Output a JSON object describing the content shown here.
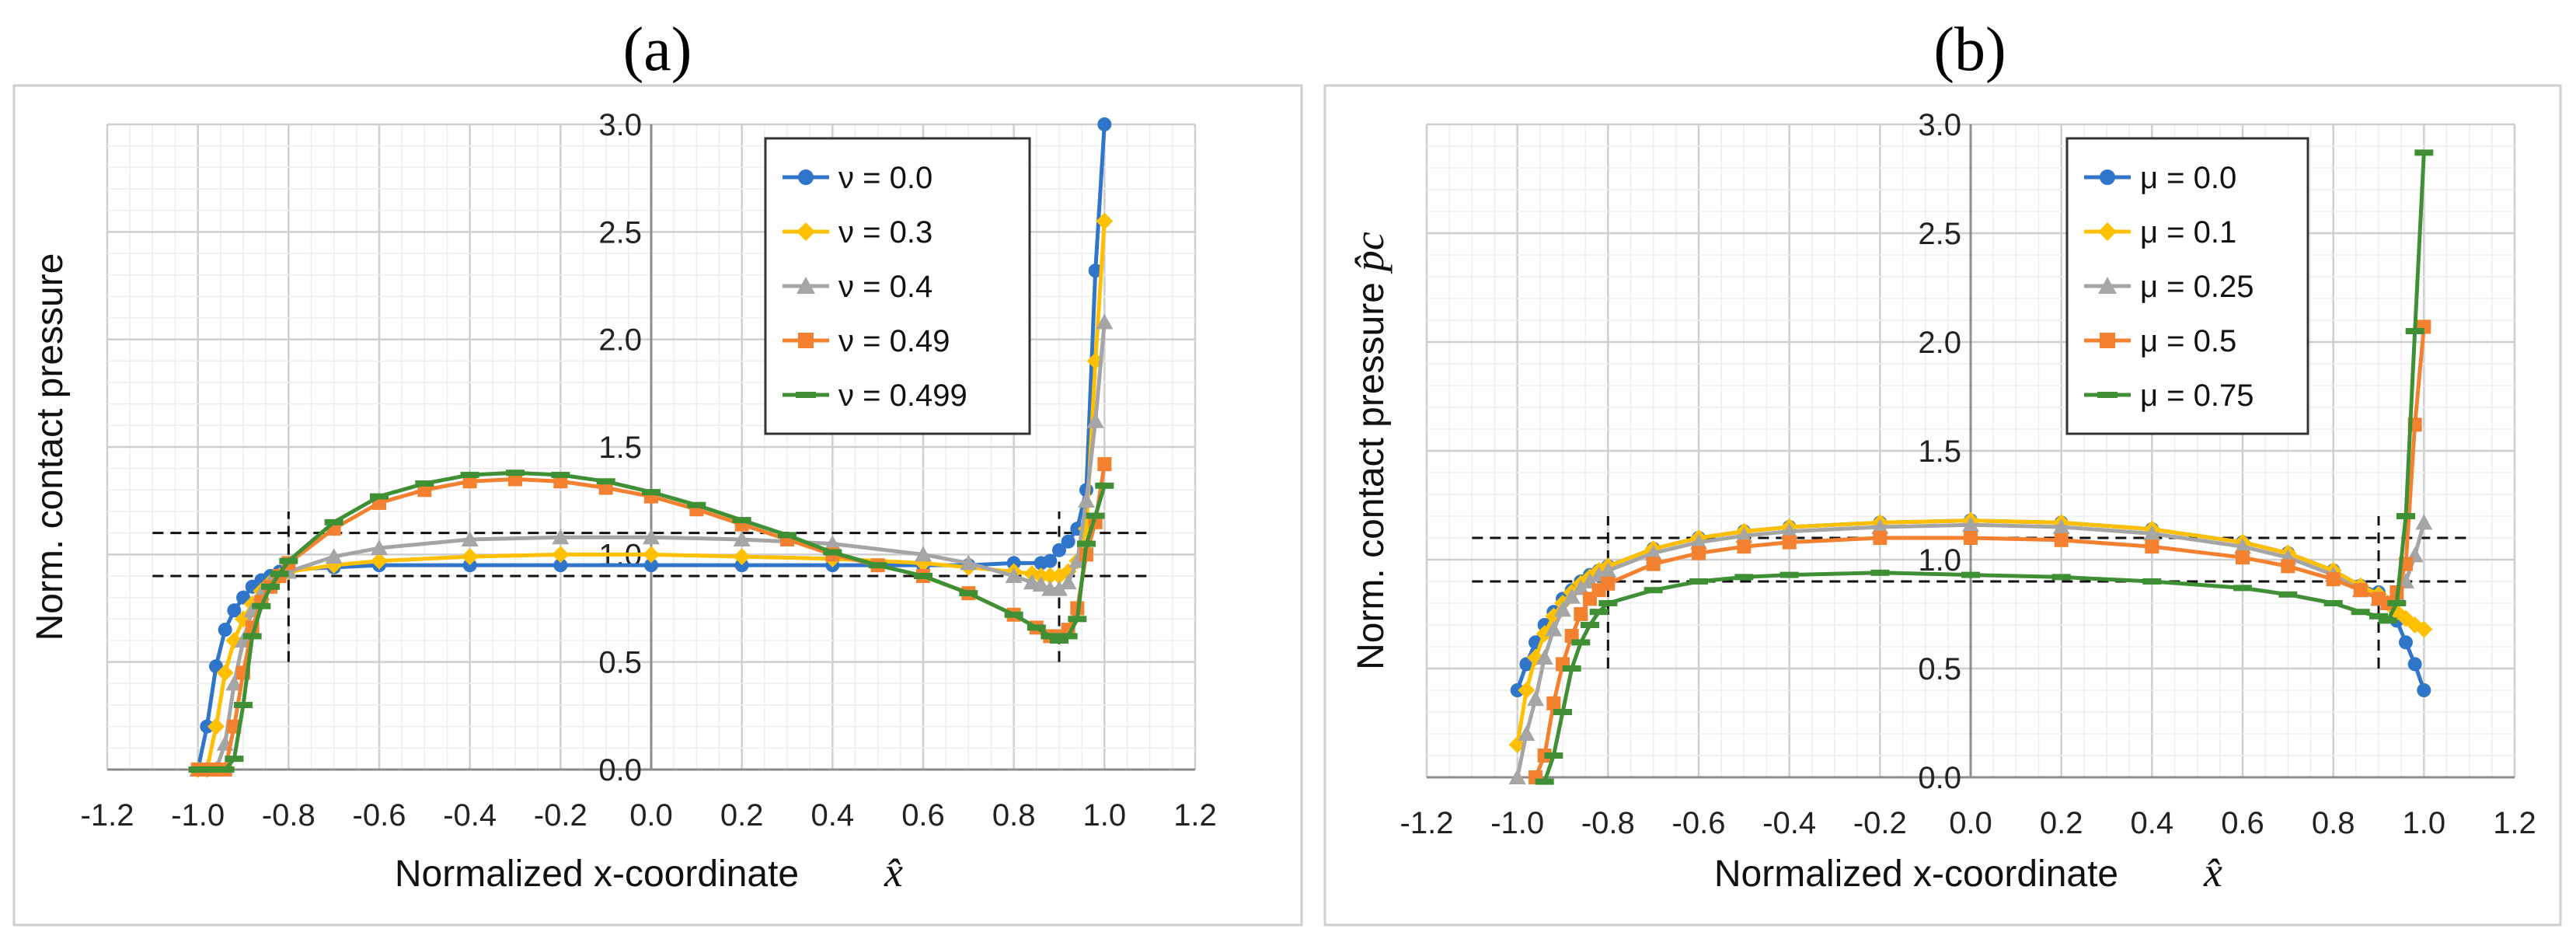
{
  "panels": [
    {
      "id": "a",
      "title": "(a)",
      "chart_data": {
        "type": "line",
        "xlabel": "Normalized x-coordinate",
        "xlabel_symbol": "x̂",
        "ylabel": "Norm. contact pressure",
        "ylabel_symbol": "",
        "xlim": [
          -1.2,
          1.2
        ],
        "ylim": [
          0.0,
          3.0
        ],
        "xticks": [
          "-1.2",
          "-1.0",
          "-0.8",
          "-0.6",
          "-0.4",
          "-0.2",
          "0.0",
          "0.2",
          "0.4",
          "0.6",
          "0.8",
          "1.0",
          "1.2"
        ],
        "yticks": [
          "0.0",
          "0.5",
          "1.0",
          "1.5",
          "2.0",
          "2.5",
          "3.0"
        ],
        "grid": true,
        "legend_position": "top-right",
        "reference_lines": {
          "horizontal": [
            0.9,
            1.1
          ],
          "vertical": [
            -0.8,
            0.9
          ]
        },
        "series": [
          {
            "name": "ν = 0.0",
            "color": "#2f75c9",
            "marker": "circle",
            "x": [
              -1.0,
              -0.98,
              -0.96,
              -0.94,
              -0.92,
              -0.9,
              -0.88,
              -0.86,
              -0.84,
              -0.82,
              -0.8,
              -0.7,
              -0.6,
              -0.4,
              -0.2,
              0.0,
              0.2,
              0.4,
              0.6,
              0.7,
              0.8,
              0.86,
              0.88,
              0.9,
              0.92,
              0.94,
              0.96,
              0.98,
              1.0
            ],
            "y": [
              0.0,
              0.2,
              0.48,
              0.65,
              0.74,
              0.8,
              0.85,
              0.88,
              0.9,
              0.92,
              0.93,
              0.94,
              0.95,
              0.95,
              0.95,
              0.95,
              0.95,
              0.95,
              0.95,
              0.95,
              0.96,
              0.96,
              0.97,
              1.02,
              1.06,
              1.12,
              1.3,
              2.32,
              3.0
            ]
          },
          {
            "name": "ν = 0.3",
            "color": "#ffc000",
            "marker": "diamond",
            "x": [
              -1.0,
              -0.98,
              -0.96,
              -0.94,
              -0.92,
              -0.9,
              -0.88,
              -0.86,
              -0.84,
              -0.82,
              -0.8,
              -0.7,
              -0.6,
              -0.4,
              -0.2,
              0.0,
              0.2,
              0.4,
              0.6,
              0.7,
              0.8,
              0.84,
              0.86,
              0.88,
              0.9,
              0.92,
              0.94,
              0.96,
              0.98,
              1.0
            ],
            "y": [
              0.0,
              0.0,
              0.2,
              0.45,
              0.6,
              0.7,
              0.77,
              0.83,
              0.87,
              0.9,
              0.92,
              0.95,
              0.97,
              0.99,
              1.0,
              1.0,
              0.99,
              0.98,
              0.96,
              0.94,
              0.92,
              0.91,
              0.9,
              0.9,
              0.9,
              0.92,
              0.97,
              1.12,
              1.9,
              2.55
            ]
          },
          {
            "name": "ν = 0.4",
            "color": "#a5a5a5",
            "marker": "triangle",
            "x": [
              -1.0,
              -0.98,
              -0.96,
              -0.94,
              -0.92,
              -0.9,
              -0.88,
              -0.86,
              -0.84,
              -0.8,
              -0.7,
              -0.6,
              -0.4,
              -0.2,
              0.0,
              0.2,
              0.4,
              0.6,
              0.7,
              0.8,
              0.84,
              0.86,
              0.88,
              0.9,
              0.92,
              0.94,
              0.96,
              0.98,
              1.0
            ],
            "y": [
              0.0,
              0.0,
              0.0,
              0.12,
              0.4,
              0.6,
              0.74,
              0.82,
              0.87,
              0.92,
              0.99,
              1.03,
              1.07,
              1.08,
              1.08,
              1.07,
              1.05,
              1.0,
              0.96,
              0.9,
              0.87,
              0.86,
              0.84,
              0.84,
              0.87,
              0.97,
              1.25,
              1.62,
              2.08
            ]
          },
          {
            "name": "ν = 0.49",
            "color": "#f4812f",
            "marker": "square",
            "x": [
              -1.0,
              -0.98,
              -0.96,
              -0.94,
              -0.92,
              -0.9,
              -0.88,
              -0.86,
              -0.84,
              -0.82,
              -0.8,
              -0.7,
              -0.6,
              -0.5,
              -0.4,
              -0.3,
              -0.2,
              -0.1,
              0.0,
              0.1,
              0.2,
              0.3,
              0.4,
              0.5,
              0.6,
              0.7,
              0.8,
              0.85,
              0.88,
              0.9,
              0.92,
              0.94,
              0.96,
              0.98,
              1.0
            ],
            "y": [
              0.0,
              0.0,
              0.0,
              0.0,
              0.2,
              0.45,
              0.66,
              0.78,
              0.85,
              0.9,
              0.96,
              1.12,
              1.24,
              1.3,
              1.34,
              1.35,
              1.34,
              1.31,
              1.27,
              1.21,
              1.14,
              1.07,
              1.0,
              0.95,
              0.9,
              0.82,
              0.72,
              0.66,
              0.62,
              0.62,
              0.65,
              0.75,
              1.0,
              1.15,
              1.42
            ]
          },
          {
            "name": "ν = 0.499",
            "color": "#3f8f35",
            "marker": "dash",
            "x": [
              -1.0,
              -0.98,
              -0.96,
              -0.94,
              -0.92,
              -0.9,
              -0.88,
              -0.86,
              -0.84,
              -0.82,
              -0.8,
              -0.7,
              -0.6,
              -0.5,
              -0.4,
              -0.3,
              -0.2,
              -0.1,
              0.0,
              0.1,
              0.2,
              0.3,
              0.4,
              0.5,
              0.6,
              0.7,
              0.8,
              0.85,
              0.88,
              0.9,
              0.92,
              0.94,
              0.96,
              0.98,
              1.0
            ],
            "y": [
              0.0,
              0.0,
              0.0,
              0.0,
              0.05,
              0.3,
              0.62,
              0.76,
              0.85,
              0.91,
              0.97,
              1.15,
              1.27,
              1.33,
              1.37,
              1.38,
              1.37,
              1.34,
              1.29,
              1.23,
              1.16,
              1.09,
              1.01,
              0.95,
              0.9,
              0.82,
              0.72,
              0.66,
              0.62,
              0.6,
              0.62,
              0.7,
              1.05,
              1.18,
              1.32
            ]
          }
        ]
      }
    },
    {
      "id": "b",
      "title": "(b)",
      "chart_data": {
        "type": "line",
        "xlabel": "Normalized x-coordinate",
        "xlabel_symbol": "x̂",
        "ylabel": "Norm. contact pressure",
        "ylabel_symbol": "p̂c",
        "xlim": [
          -1.2,
          1.2
        ],
        "ylim": [
          0.0,
          3.0
        ],
        "xticks": [
          "-1.2",
          "-1.0",
          "-0.8",
          "-0.6",
          "-0.4",
          "-0.2",
          "0.0",
          "0.2",
          "0.4",
          "0.6",
          "0.8",
          "1.0",
          "1.2"
        ],
        "yticks": [
          "0.0",
          "0.5",
          "1.0",
          "1.5",
          "2.0",
          "2.5",
          "3.0"
        ],
        "grid": true,
        "legend_position": "top-right",
        "reference_lines": {
          "horizontal": [
            0.9,
            1.1
          ],
          "vertical": [
            -0.8,
            0.9
          ]
        },
        "series": [
          {
            "name": "μ = 0.0",
            "color": "#2f75c9",
            "marker": "circle",
            "x": [
              -1.0,
              -0.98,
              -0.96,
              -0.94,
              -0.92,
              -0.9,
              -0.88,
              -0.86,
              -0.84,
              -0.82,
              -0.8,
              -0.7,
              -0.6,
              -0.5,
              -0.4,
              -0.2,
              0.0,
              0.2,
              0.4,
              0.6,
              0.7,
              0.8,
              0.86,
              0.9,
              0.92,
              0.94,
              0.96,
              0.98,
              1.0
            ],
            "y": [
              0.4,
              0.52,
              0.62,
              0.7,
              0.76,
              0.82,
              0.86,
              0.9,
              0.93,
              0.95,
              0.97,
              1.05,
              1.1,
              1.13,
              1.15,
              1.17,
              1.18,
              1.17,
              1.14,
              1.08,
              1.03,
              0.95,
              0.88,
              0.85,
              0.8,
              0.72,
              0.62,
              0.52,
              0.4
            ]
          },
          {
            "name": "μ = 0.1",
            "color": "#ffc000",
            "marker": "diamond",
            "x": [
              -1.0,
              -0.98,
              -0.96,
              -0.94,
              -0.92,
              -0.9,
              -0.88,
              -0.86,
              -0.84,
              -0.82,
              -0.8,
              -0.7,
              -0.6,
              -0.5,
              -0.4,
              -0.2,
              0.0,
              0.2,
              0.4,
              0.6,
              0.7,
              0.8,
              0.86,
              0.9,
              0.92,
              0.94,
              0.96,
              0.98,
              1.0
            ],
            "y": [
              0.15,
              0.4,
              0.55,
              0.66,
              0.74,
              0.8,
              0.85,
              0.89,
              0.92,
              0.95,
              0.97,
              1.05,
              1.1,
              1.13,
              1.15,
              1.17,
              1.18,
              1.17,
              1.14,
              1.08,
              1.03,
              0.95,
              0.88,
              0.84,
              0.8,
              0.76,
              0.73,
              0.7,
              0.68
            ]
          },
          {
            "name": "μ = 0.25",
            "color": "#a5a5a5",
            "marker": "triangle",
            "x": [
              -1.0,
              -0.98,
              -0.96,
              -0.94,
              -0.92,
              -0.9,
              -0.88,
              -0.86,
              -0.84,
              -0.82,
              -0.8,
              -0.7,
              -0.6,
              -0.5,
              -0.4,
              -0.2,
              0.0,
              0.2,
              0.4,
              0.6,
              0.7,
              0.8,
              0.86,
              0.9,
              0.92,
              0.94,
              0.96,
              0.98,
              1.0
            ],
            "y": [
              0.0,
              0.2,
              0.36,
              0.55,
              0.68,
              0.77,
              0.83,
              0.87,
              0.9,
              0.93,
              0.95,
              1.03,
              1.08,
              1.11,
              1.13,
              1.15,
              1.16,
              1.15,
              1.12,
              1.06,
              1.01,
              0.93,
              0.86,
              0.82,
              0.8,
              0.84,
              0.9,
              1.02,
              1.17
            ]
          },
          {
            "name": "μ = 0.5",
            "color": "#f4812f",
            "marker": "square",
            "x": [
              -0.96,
              -0.94,
              -0.92,
              -0.9,
              -0.88,
              -0.86,
              -0.84,
              -0.82,
              -0.8,
              -0.7,
              -0.6,
              -0.5,
              -0.4,
              -0.2,
              0.0,
              0.2,
              0.4,
              0.6,
              0.7,
              0.8,
              0.86,
              0.9,
              0.92,
              0.94,
              0.96,
              0.98,
              1.0
            ],
            "y": [
              0.0,
              0.1,
              0.34,
              0.52,
              0.65,
              0.75,
              0.82,
              0.86,
              0.89,
              0.98,
              1.03,
              1.06,
              1.08,
              1.1,
              1.1,
              1.09,
              1.06,
              1.01,
              0.97,
              0.91,
              0.86,
              0.82,
              0.8,
              0.85,
              0.98,
              1.62,
              2.07
            ]
          },
          {
            "name": "μ = 0.75",
            "color": "#3f8f35",
            "marker": "dash",
            "x": [
              -0.94,
              -0.92,
              -0.9,
              -0.88,
              -0.86,
              -0.84,
              -0.82,
              -0.8,
              -0.7,
              -0.6,
              -0.5,
              -0.4,
              -0.2,
              0.0,
              0.2,
              0.4,
              0.6,
              0.7,
              0.8,
              0.86,
              0.9,
              0.92,
              0.94,
              0.96,
              0.98,
              1.0
            ],
            "y": [
              -0.02,
              0.1,
              0.3,
              0.5,
              0.62,
              0.7,
              0.76,
              0.8,
              0.86,
              0.9,
              0.92,
              0.93,
              0.94,
              0.93,
              0.92,
              0.9,
              0.87,
              0.84,
              0.8,
              0.76,
              0.74,
              0.72,
              0.8,
              1.2,
              2.05,
              2.87
            ]
          }
        ]
      }
    }
  ]
}
